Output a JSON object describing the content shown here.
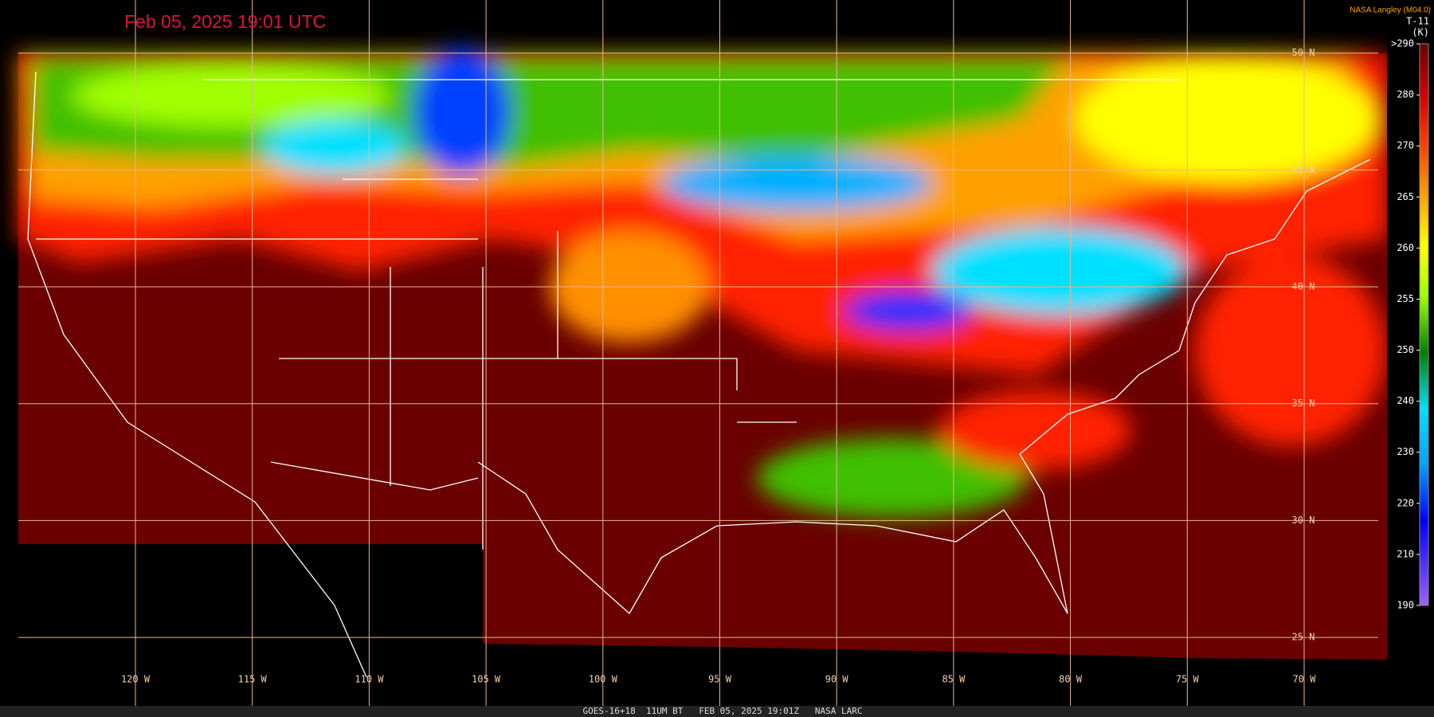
{
  "header": {
    "timestamp": "Feb 05, 2025 19:01 UTC",
    "source": "NASA Langley (M04.0)"
  },
  "colorbar": {
    "title": "T-11",
    "unit": "(K)",
    "ticks": [
      {
        "value": 290,
        "label": ">290"
      },
      280,
      270,
      265,
      260,
      255,
      250,
      240,
      230,
      220,
      210,
      190
    ]
  },
  "latitudes": [
    {
      "value": 50,
      "label": "50 N"
    },
    {
      "value": 45,
      "label": "45 N"
    },
    {
      "value": 40,
      "label": "40 N"
    },
    {
      "value": 35,
      "label": "35 N"
    },
    {
      "value": 30,
      "label": "30 N"
    },
    {
      "value": 25,
      "label": "25 N"
    }
  ],
  "longitudes": [
    {
      "value": -120,
      "label": "120 W"
    },
    {
      "value": -115,
      "label": "115 W"
    },
    {
      "value": -110,
      "label": "110 W"
    },
    {
      "value": -105,
      "label": "105 W"
    },
    {
      "value": -100,
      "label": "100 W"
    },
    {
      "value": -95,
      "label": "95 W"
    },
    {
      "value": -90,
      "label": "90 W"
    },
    {
      "value": -85,
      "label": "85 W"
    },
    {
      "value": -80,
      "label": "80 W"
    },
    {
      "value": -75,
      "label": "75 W"
    },
    {
      "value": -70,
      "label": "70 W"
    }
  ],
  "footer": "GOES-16+18  11UM BT   FEB 05, 2025 19:01Z   NASA LARC"
}
